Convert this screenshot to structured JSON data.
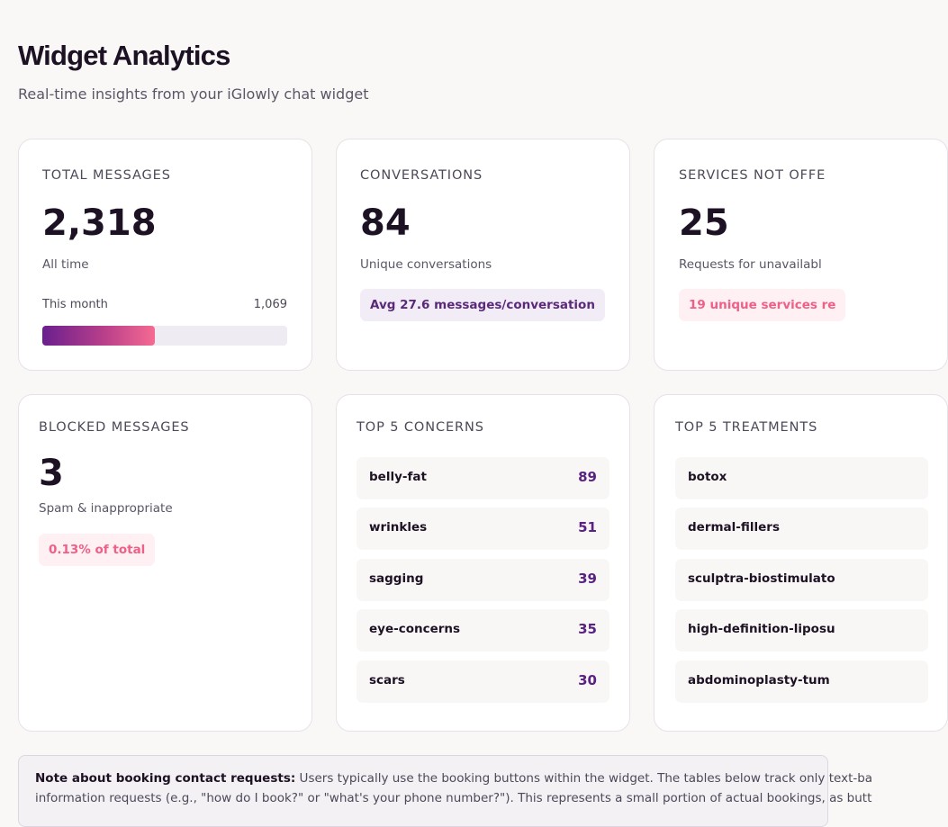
{
  "header": {
    "title": "Widget Analytics",
    "subtitle": "Real-time insights from your iGlowly chat widget"
  },
  "cards": {
    "total_messages": {
      "label": "TOTAL MESSAGES",
      "value": "2,318",
      "caption": "All time",
      "month_label": "This month",
      "month_value": "1,069",
      "month_progress_percent": 46
    },
    "conversations": {
      "label": "CONVERSATIONS",
      "value": "84",
      "caption": "Unique conversations",
      "pill": "Avg 27.6 messages/conversation"
    },
    "services_not_offered": {
      "label": "SERVICES NOT OFFE",
      "value": "25",
      "caption": "Requests for unavailabl",
      "pill": "19 unique services re"
    },
    "blocked_messages": {
      "label": "BLOCKED MESSAGES",
      "value": "3",
      "caption": "Spam & inappropriate",
      "pill": "0.13% of total"
    },
    "top_concerns": {
      "label": "TOP 5 CONCERNS",
      "items": [
        {
          "name": "belly-fat",
          "count": "89"
        },
        {
          "name": "wrinkles",
          "count": "51"
        },
        {
          "name": "sagging",
          "count": "39"
        },
        {
          "name": "eye-concerns",
          "count": "35"
        },
        {
          "name": "scars",
          "count": "30"
        }
      ]
    },
    "top_treatments": {
      "label": "TOP 5 TREATMENTS",
      "items": [
        {
          "name": "botox"
        },
        {
          "name": "dermal-fillers"
        },
        {
          "name": "sculptra-biostimulato"
        },
        {
          "name": "high-definition-liposu"
        },
        {
          "name": "abdominoplasty-tum"
        }
      ]
    }
  },
  "note": {
    "bold": "Note about booking contact requests:",
    "line1": " Users typically use the booking buttons within the widget. The tables below track only text-ba",
    "line2": "information requests (e.g., \"how do I book?\" or \"what's your phone number?\"). This represents a small portion of actual bookings, as butt"
  },
  "colors": {
    "accent_purple": "#5a2281",
    "accent_pink": "#ef5f87",
    "background": "#f9f8f7"
  }
}
